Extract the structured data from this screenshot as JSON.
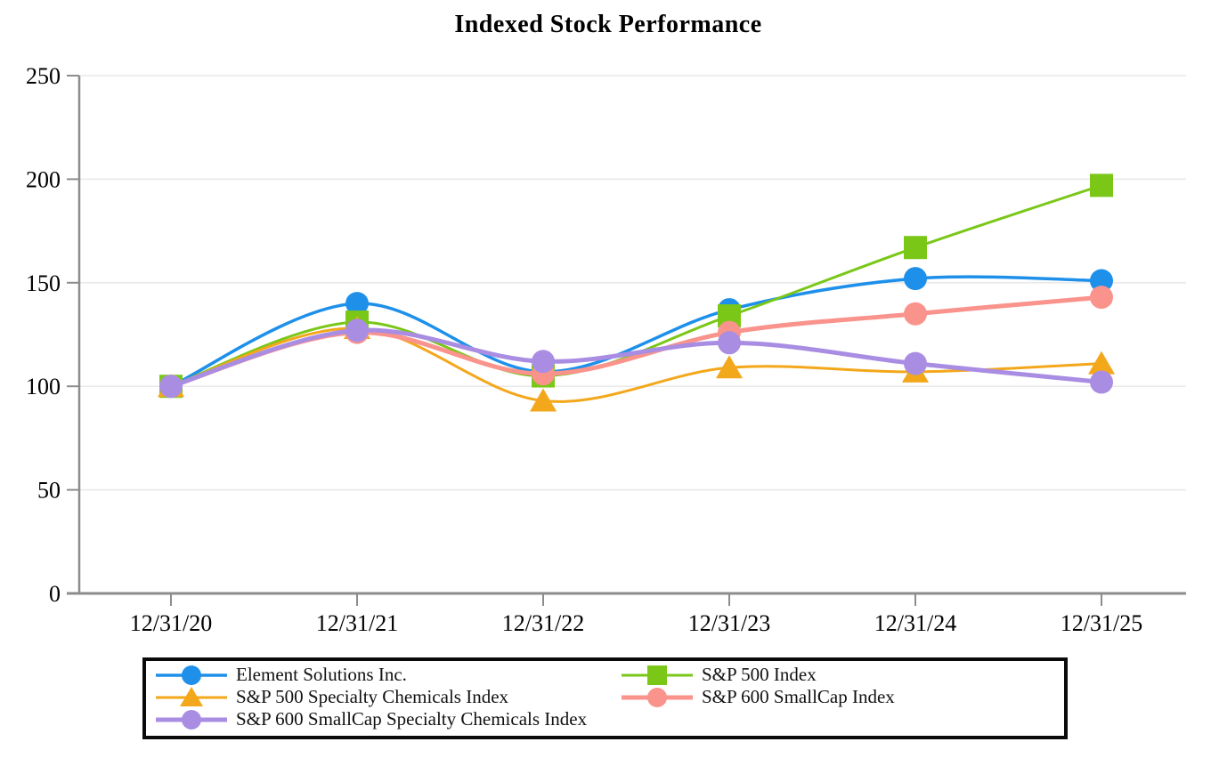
{
  "title": "Indexed Stock Performance",
  "chart_data": {
    "type": "line",
    "categories": [
      "12/31/20",
      "12/31/21",
      "12/31/22",
      "12/31/23",
      "12/31/24",
      "12/31/25"
    ],
    "series": [
      {
        "name": "Element Solutions Inc.",
        "color": "#1E90EA",
        "marker": "circle",
        "line_width": 3.5,
        "values": [
          100,
          140,
          107,
          137,
          152,
          151
        ]
      },
      {
        "name": "S&P 500 Index",
        "color": "#7AC718",
        "marker": "square",
        "line_width": 3,
        "values": [
          100,
          131,
          105,
          134,
          167,
          197
        ]
      },
      {
        "name": "S&P 500 Specialty Chemicals Index",
        "color": "#F3A71B",
        "marker": "triangle",
        "line_width": 3,
        "values": [
          100,
          128,
          93,
          109,
          107,
          111
        ]
      },
      {
        "name": "S&P 600 SmallCap Index",
        "color": "#F9938C",
        "marker": "circle",
        "line_width": 5,
        "values": [
          100,
          126,
          106,
          126,
          135,
          143
        ]
      },
      {
        "name": "S&P 600 SmallCap Specialty Chemicals Index",
        "color": "#A98DE3",
        "marker": "circle",
        "line_width": 5,
        "values": [
          100,
          127,
          112,
          121,
          111,
          102
        ]
      }
    ],
    "ylim": [
      0,
      250
    ],
    "yticks": [
      0,
      50,
      100,
      150,
      200,
      250
    ],
    "grid": true,
    "smooth_lines": true,
    "legend_position": "bottom",
    "legend_columns": [
      [
        0,
        2,
        4
      ],
      [
        1,
        3
      ]
    ],
    "axis_color": "#8c8c8c",
    "grid_color": "#e9e9e9",
    "text_color": "#000000"
  }
}
